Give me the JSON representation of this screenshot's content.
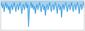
{
  "chart_data": {
    "type": "area",
    "color": "#3399dd",
    "values": [
      -3,
      -1,
      -4,
      -2,
      -6,
      -3,
      -1,
      -4,
      -2,
      -5,
      -3,
      -7,
      -4,
      -2,
      -5,
      -3,
      -1,
      -4,
      -6,
      -3,
      -2,
      -5,
      -3,
      -1,
      -4,
      -7,
      -3,
      -2,
      -5,
      -3,
      -1,
      -4,
      -2,
      -14,
      -5,
      -3,
      -1,
      -4,
      -2,
      -5,
      -3,
      -7,
      -4,
      -2,
      -5,
      -3,
      -1,
      -4,
      -6,
      -3,
      -2,
      -5,
      -3,
      -8,
      -4,
      -2,
      -5,
      -3,
      -1,
      -4,
      -6,
      -3,
      -2,
      -5,
      -3,
      -1,
      -4,
      -7,
      -3,
      -2,
      -5,
      -3,
      -9,
      -4,
      -2,
      -5,
      -3,
      -1,
      -4,
      -6,
      -3,
      -2,
      -5,
      -3,
      -1,
      -4,
      -6,
      -3,
      -2,
      -5,
      -3,
      -1,
      -4,
      -7,
      -3,
      -2,
      -5,
      -3,
      -1,
      -4
    ],
    "xlim": [
      0,
      99
    ],
    "ylim": [
      -16,
      0
    ],
    "tick_labels": false
  }
}
